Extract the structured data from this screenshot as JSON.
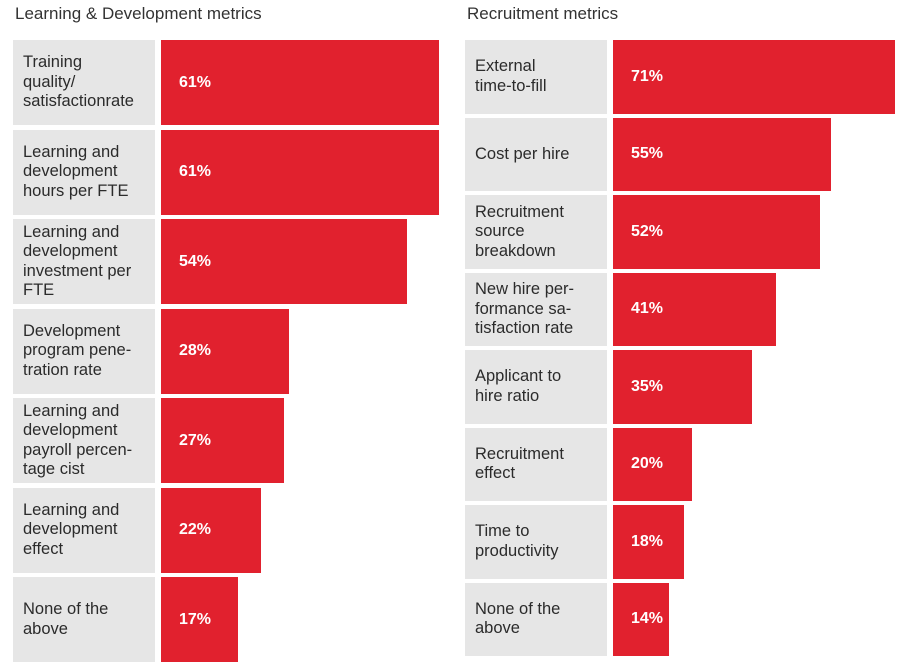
{
  "colors": {
    "bar": "#e1212e",
    "label_bg": "#e6e6e6",
    "text": "#2b2b2b"
  },
  "chart_data": [
    {
      "type": "bar",
      "orientation": "horizontal",
      "title": "Learning & Development metrics",
      "unit": "%",
      "categories": [
        "Training quality/ satisfactionrate",
        "Learning and development hours per FTE",
        "Learning and development investment per FTE",
        "Development program pene-tration rate",
        "Learning and development payroll percen-tage cist",
        "Learning and development effect",
        "None of the above"
      ],
      "display_labels": [
        "Training\nquality/\nsatisfactionrate",
        "Learning and\ndevelopment\nhours per FTE",
        "Learning and\ndevelopment\ninvestment per\nFTE",
        "Development\nprogram pene-\ntration rate",
        "Learning and\ndevelopment\npayroll percen-\ntage cist",
        "Learning and\ndevelopment\neffect",
        "None of the\nabove"
      ],
      "values": [
        61,
        61,
        54,
        28,
        27,
        22,
        17
      ],
      "value_labels": [
        "61%",
        "61%",
        "54%",
        "28%",
        "27%",
        "22%",
        "17%"
      ]
    },
    {
      "type": "bar",
      "orientation": "horizontal",
      "title": "Recruitment metrics",
      "unit": "%",
      "categories": [
        "External time-to-fill",
        "Cost per hire",
        "Recruitment source breakdown",
        "New hire per-formance sa-tisfaction rate",
        "Applicant to hire ratio",
        "Recruitment effect",
        "Time to productivity",
        "None of the above"
      ],
      "display_labels": [
        "External\ntime-to-fill",
        "Cost per hire",
        "Recruitment\nsource\nbreakdown",
        "New hire per-\nformance sa-\ntisfaction rate",
        "Applicant to\nhire ratio",
        "Recruitment\neffect",
        "Time to\nproductivity",
        "None of the\nabove"
      ],
      "values": [
        71,
        55,
        52,
        41,
        35,
        20,
        18,
        14
      ],
      "value_labels": [
        "71%",
        "55%",
        "52%",
        "41%",
        "35%",
        "20%",
        "18%",
        "14%"
      ]
    }
  ]
}
